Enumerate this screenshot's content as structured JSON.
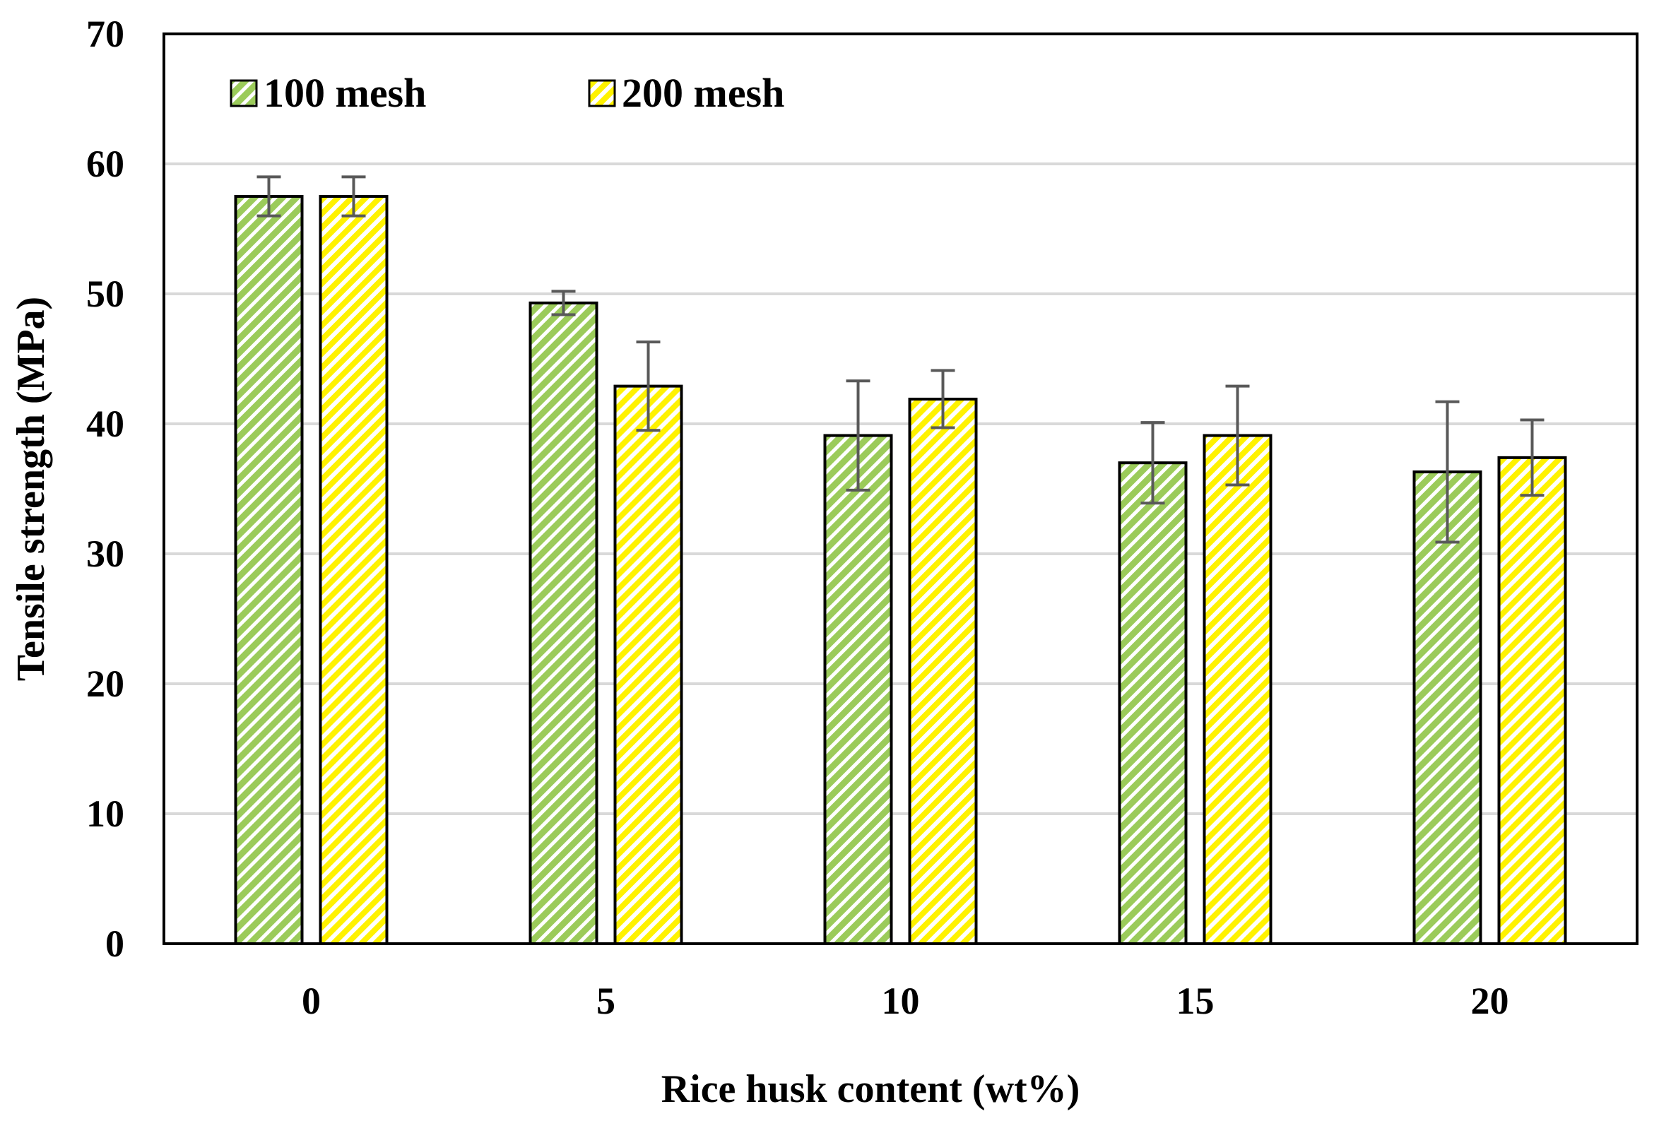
{
  "chart_data": {
    "type": "bar",
    "title": "",
    "xlabel": "Rice husk content (wt%)",
    "ylabel": "Tensile strength (MPa)",
    "categories": [
      "0",
      "5",
      "10",
      "15",
      "20"
    ],
    "ylim": [
      0,
      70
    ],
    "yticks": [
      "0",
      "10",
      "20",
      "30",
      "40",
      "50",
      "60",
      "70"
    ],
    "grid": true,
    "legend_position": "top-left",
    "series": [
      {
        "name": "100 mesh",
        "values": [
          57.5,
          49.3,
          39.1,
          37.0,
          36.3
        ],
        "errors": [
          1.5,
          0.9,
          4.2,
          3.1,
          5.4
        ],
        "color": "#9BCB5A",
        "pattern": "diagonal-hatch"
      },
      {
        "name": "200 mesh",
        "values": [
          57.5,
          42.9,
          41.9,
          39.1,
          37.4
        ],
        "errors": [
          1.5,
          3.4,
          2.2,
          3.8,
          2.9
        ],
        "color": "#FFF200",
        "pattern": "diagonal-hatch"
      }
    ]
  }
}
